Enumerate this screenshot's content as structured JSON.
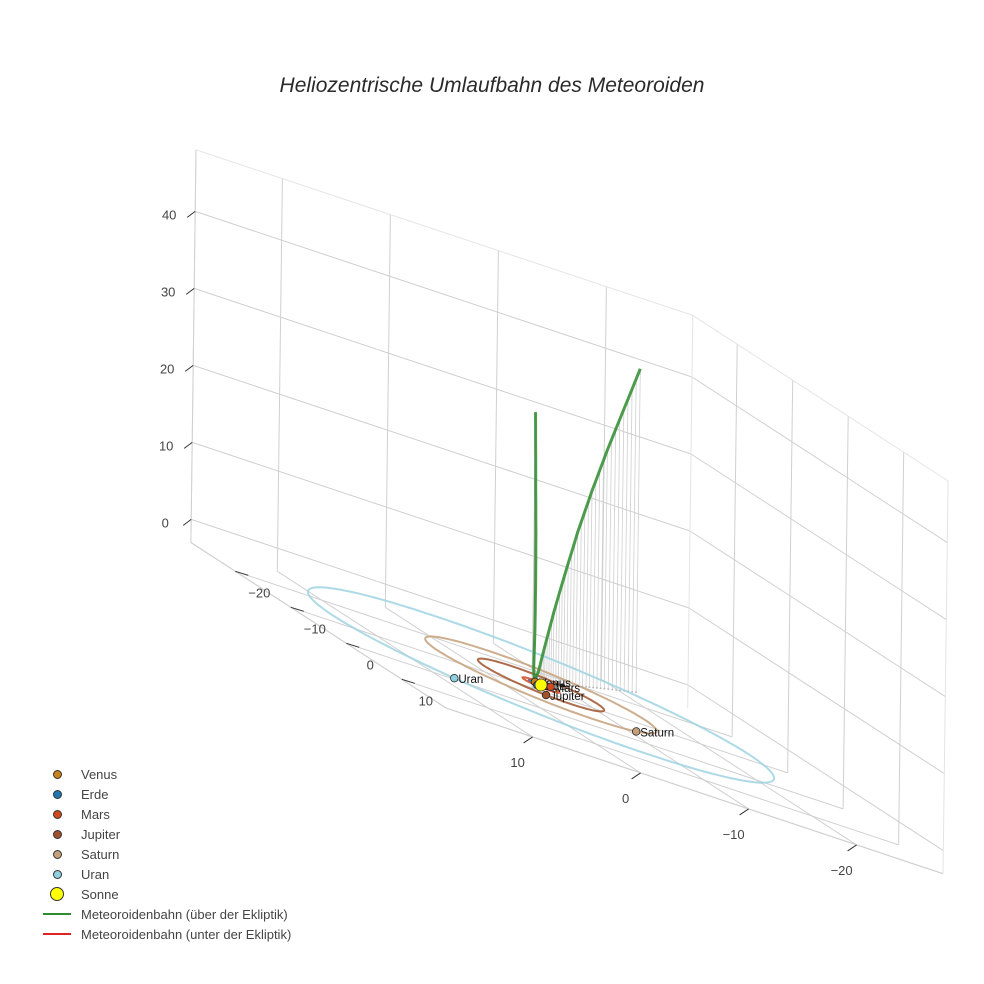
{
  "title": "Heliozentrische Umlaufbahn des Meteoroiden",
  "legend": [
    {
      "label": "Venus",
      "type": "marker",
      "color": "#c8821e",
      "size": 9
    },
    {
      "label": "Erde",
      "type": "marker",
      "color": "#1f77b4",
      "size": 9
    },
    {
      "label": "Mars",
      "type": "marker",
      "color": "#d2491e",
      "size": 9
    },
    {
      "label": "Jupiter",
      "type": "marker",
      "color": "#a0522d",
      "size": 9
    },
    {
      "label": "Saturn",
      "type": "marker",
      "color": "#c4a07a",
      "size": 9
    },
    {
      "label": "Uran",
      "type": "marker",
      "color": "#8fd0e0",
      "size": 9
    },
    {
      "label": "Sonne",
      "type": "marker",
      "color": "#ffff00",
      "size": 14
    },
    {
      "label": "Meteoroidenbahn (über der Ekliptik)",
      "type": "line",
      "color": "#2e8b2e"
    },
    {
      "label": "Meteoroidenbahn (unter der Ekliptik)",
      "type": "line",
      "color": "#dd2222"
    }
  ],
  "chart_data": {
    "type": "scatter3d",
    "title": "Heliozentrische Umlaufbahn des Meteoroiden",
    "axes": {
      "x": {
        "ticks": [
          -20,
          -10,
          0,
          10
        ],
        "range": [
          -28,
          18
        ]
      },
      "y": {
        "ticks": [
          -20,
          -10,
          0,
          10
        ],
        "range": [
          -28,
          18
        ]
      },
      "z": {
        "ticks": [
          0,
          10,
          20,
          30,
          40
        ],
        "range": [
          -3,
          48
        ]
      }
    },
    "orbits": [
      {
        "name": "Venus",
        "radius": 0.72,
        "color": "#c8821e"
      },
      {
        "name": "Erde",
        "radius": 1.0,
        "color": "#1f77b4"
      },
      {
        "name": "Mars",
        "radius": 1.52,
        "color": "#d2491e"
      },
      {
        "name": "Jupiter",
        "radius": 5.2,
        "color": "#a0522d"
      },
      {
        "name": "Saturn",
        "radius": 9.54,
        "color": "#c4a07a"
      },
      {
        "name": "Uran",
        "radius": 19.2,
        "color": "#9fd4e2"
      }
    ],
    "planets": [
      {
        "name": "Venus",
        "x": 0.2,
        "y": -0.7,
        "z": 0,
        "color": "#c8821e"
      },
      {
        "name": "Erde",
        "x": 0.7,
        "y": 0.7,
        "z": 0,
        "color": "#1f77b4"
      },
      {
        "name": "Mars",
        "x": -1.3,
        "y": -0.8,
        "z": 0,
        "color": "#d2491e"
      },
      {
        "name": "Jupiter",
        "x": 2.0,
        "y": 4.8,
        "z": 0,
        "color": "#a0522d"
      },
      {
        "name": "Saturn",
        "x": -4.5,
        "y": 8.4,
        "z": 0,
        "color": "#c4a07a"
      },
      {
        "name": "Uran",
        "x": 14.5,
        "y": 12.6,
        "z": 0,
        "color": "#8fd0e0"
      }
    ],
    "sun": {
      "name": "Sonne",
      "x": 0,
      "y": 0,
      "z": 0,
      "color": "#ffff00"
    },
    "meteoroid_above": {
      "name": "Meteoroidenbahn (über der Ekliptik)",
      "color": "#2e8b2e",
      "points": [
        [
          -16.0,
          -14.0,
          42.0
        ],
        [
          -13.5,
          -12.0,
          36.5
        ],
        [
          -11.0,
          -10.0,
          31.0
        ],
        [
          -8.6,
          -8.0,
          25.5
        ],
        [
          -6.3,
          -6.0,
          20.0
        ],
        [
          -4.2,
          -4.1,
          14.5
        ],
        [
          -2.4,
          -2.5,
          9.5
        ],
        [
          -1.0,
          -1.3,
          5.0
        ],
        [
          0.0,
          -0.5,
          1.5
        ],
        [
          0.6,
          0.0,
          0.3
        ],
        [
          1.0,
          0.6,
          2.0
        ],
        [
          1.4,
          1.5,
          7.0
        ],
        [
          1.8,
          2.3,
          13.0
        ],
        [
          2.2,
          3.0,
          20.0
        ],
        [
          2.6,
          3.6,
          28.0
        ],
        [
          3.0,
          4.2,
          36.0
        ]
      ]
    },
    "meteoroid_below": {
      "name": "Meteoroidenbahn (unter der Ekliptik)",
      "color": "#dd2222",
      "points": []
    }
  }
}
